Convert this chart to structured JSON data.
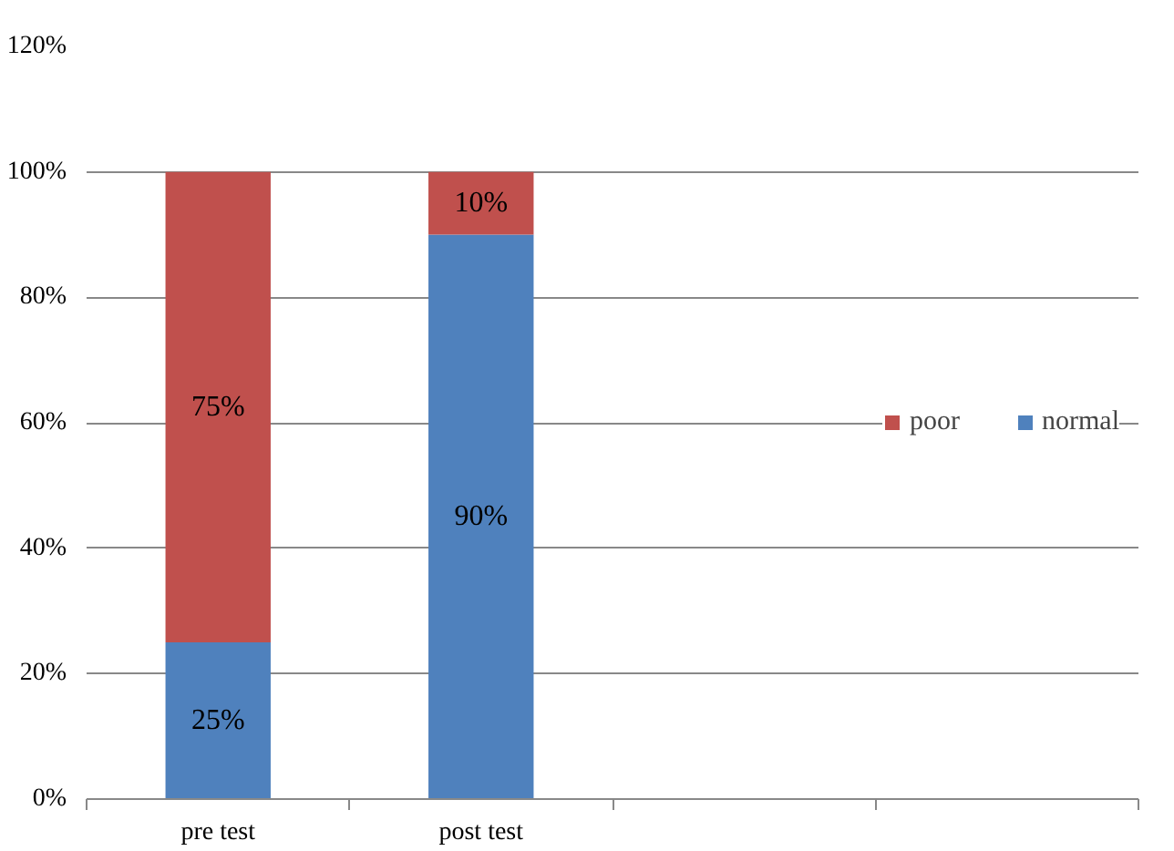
{
  "chart_data": {
    "type": "bar",
    "stacked": true,
    "categories": [
      "pre test",
      "post test",
      null,
      null
    ],
    "series": [
      {
        "name": "normal",
        "color": "#4f81bd",
        "values": [
          25,
          90,
          null,
          null
        ],
        "value_labels": [
          "25%",
          "90%",
          null,
          null
        ]
      },
      {
        "name": "poor",
        "color": "#c0504d",
        "values": [
          75,
          10,
          null,
          null
        ],
        "value_labels": [
          "75%",
          "10%",
          null,
          null
        ]
      }
    ],
    "ylim": [
      0,
      120
    ],
    "yticks": [
      {
        "value": 0,
        "label": "0%"
      },
      {
        "value": 20,
        "label": "20%"
      },
      {
        "value": 40,
        "label": "40%"
      },
      {
        "value": 60,
        "label": "60%"
      },
      {
        "value": 80,
        "label": "80%"
      },
      {
        "value": 100,
        "label": "100%"
      },
      {
        "value": 120,
        "label": "120%"
      }
    ],
    "grid": "y",
    "legend": "right"
  }
}
